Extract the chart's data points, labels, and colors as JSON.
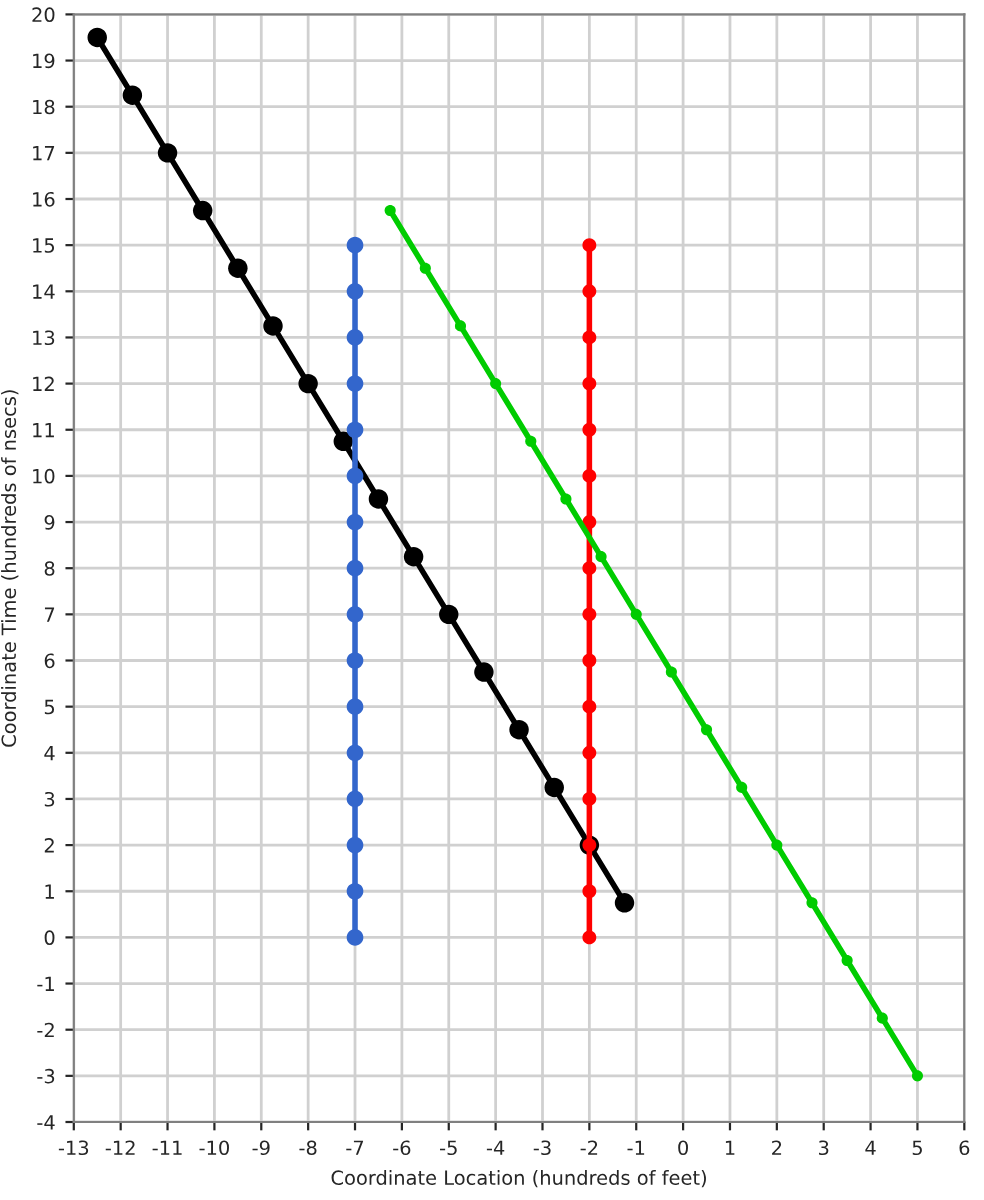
{
  "chart_data": {
    "type": "line",
    "xlabel": "Coordinate Location (hundreds of feet)",
    "ylabel": "Coordinate Time (hundreds of nsecs)",
    "xlim": [
      -13,
      6
    ],
    "ylim": [
      -4,
      20
    ],
    "xticks": [
      -13,
      -12,
      -11,
      -10,
      -9,
      -8,
      -7,
      -6,
      -5,
      -4,
      -3,
      -2,
      -1,
      0,
      1,
      2,
      3,
      4,
      5,
      6
    ],
    "yticks": [
      -4,
      -3,
      -2,
      -1,
      0,
      1,
      2,
      3,
      4,
      5,
      6,
      7,
      8,
      9,
      10,
      11,
      12,
      13,
      14,
      15,
      16,
      17,
      18,
      19,
      20
    ],
    "grid": true,
    "marker": "circle",
    "line_style": "solid",
    "series": [
      {
        "color": "#000000",
        "x": [
          -12.5,
          -11.75,
          -11,
          -10.25,
          -9.5,
          -8.75,
          -8,
          -7.25,
          -6.5,
          -5.75,
          -5,
          -4.25,
          -3.5,
          -2.75,
          -2,
          -1.25
        ],
        "values": [
          19.5,
          18.25,
          17,
          15.75,
          14.5,
          13.25,
          12,
          10.75,
          9.5,
          8.25,
          7,
          5.75,
          4.5,
          3.25,
          2,
          0.75
        ]
      },
      {
        "color": "#3366cc",
        "x": [
          -7,
          -7,
          -7,
          -7,
          -7,
          -7,
          -7,
          -7,
          -7,
          -7,
          -7,
          -7,
          -7,
          -7,
          -7,
          -7
        ],
        "values": [
          0,
          1,
          2,
          3,
          4,
          5,
          6,
          7,
          8,
          9,
          10,
          11,
          12,
          13,
          14,
          15
        ]
      },
      {
        "color": "#ff0000",
        "x": [
          -2,
          -2,
          -2,
          -2,
          -2,
          -2,
          -2,
          -2,
          -2,
          -2,
          -2,
          -2,
          -2,
          -2,
          -2,
          -2
        ],
        "values": [
          0,
          1,
          2,
          3,
          4,
          5,
          6,
          7,
          8,
          9,
          10,
          11,
          12,
          13,
          14,
          15
        ]
      },
      {
        "color": "#00cc00",
        "x": [
          -6.25,
          -5.5,
          -4.75,
          -4,
          -3.25,
          -2.5,
          -1.75,
          -1,
          -0.25,
          0.5,
          1.25,
          2,
          2.75,
          3.5,
          4.25,
          5
        ],
        "values": [
          15.75,
          14.5,
          13.25,
          12,
          10.75,
          9.5,
          8.25,
          7,
          5.75,
          4.5,
          3.25,
          2,
          0.75,
          -0.5,
          -1.75,
          -3
        ]
      }
    ]
  }
}
